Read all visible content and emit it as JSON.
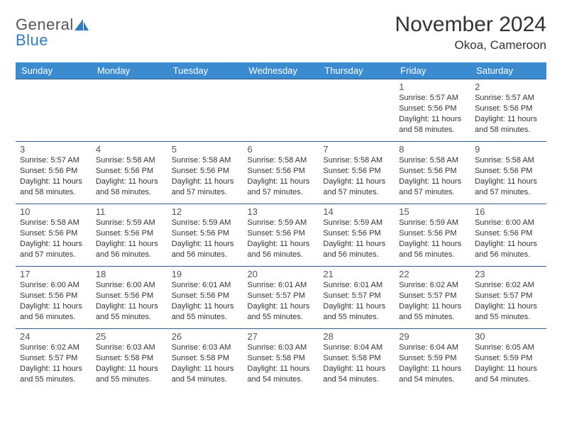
{
  "logo": {
    "word1": "General",
    "word2": "Blue",
    "text_color": "#555555",
    "accent_color": "#2f7cc4"
  },
  "title": "November 2024",
  "location": "Okoa, Cameroon",
  "calendar": {
    "type": "table",
    "header_bg": "#3b8bd0",
    "header_text_color": "#ffffff",
    "row_border_color": "#2f5a8a",
    "daynum_color": "#555555",
    "detail_color": "#333333",
    "daynum_fontsize": 13,
    "detail_fontsize": 11,
    "columns": [
      "Sunday",
      "Monday",
      "Tuesday",
      "Wednesday",
      "Thursday",
      "Friday",
      "Saturday"
    ],
    "weeks": [
      [
        null,
        null,
        null,
        null,
        null,
        {
          "n": "1",
          "sunrise": "5:57 AM",
          "sunset": "5:56 PM",
          "daylight": "11 hours and 58 minutes."
        },
        {
          "n": "2",
          "sunrise": "5:57 AM",
          "sunset": "5:56 PM",
          "daylight": "11 hours and 58 minutes."
        }
      ],
      [
        {
          "n": "3",
          "sunrise": "5:57 AM",
          "sunset": "5:56 PM",
          "daylight": "11 hours and 58 minutes."
        },
        {
          "n": "4",
          "sunrise": "5:58 AM",
          "sunset": "5:56 PM",
          "daylight": "11 hours and 58 minutes."
        },
        {
          "n": "5",
          "sunrise": "5:58 AM",
          "sunset": "5:56 PM",
          "daylight": "11 hours and 57 minutes."
        },
        {
          "n": "6",
          "sunrise": "5:58 AM",
          "sunset": "5:56 PM",
          "daylight": "11 hours and 57 minutes."
        },
        {
          "n": "7",
          "sunrise": "5:58 AM",
          "sunset": "5:56 PM",
          "daylight": "11 hours and 57 minutes."
        },
        {
          "n": "8",
          "sunrise": "5:58 AM",
          "sunset": "5:56 PM",
          "daylight": "11 hours and 57 minutes."
        },
        {
          "n": "9",
          "sunrise": "5:58 AM",
          "sunset": "5:56 PM",
          "daylight": "11 hours and 57 minutes."
        }
      ],
      [
        {
          "n": "10",
          "sunrise": "5:58 AM",
          "sunset": "5:56 PM",
          "daylight": "11 hours and 57 minutes."
        },
        {
          "n": "11",
          "sunrise": "5:59 AM",
          "sunset": "5:56 PM",
          "daylight": "11 hours and 56 minutes."
        },
        {
          "n": "12",
          "sunrise": "5:59 AM",
          "sunset": "5:56 PM",
          "daylight": "11 hours and 56 minutes."
        },
        {
          "n": "13",
          "sunrise": "5:59 AM",
          "sunset": "5:56 PM",
          "daylight": "11 hours and 56 minutes."
        },
        {
          "n": "14",
          "sunrise": "5:59 AM",
          "sunset": "5:56 PM",
          "daylight": "11 hours and 56 minutes."
        },
        {
          "n": "15",
          "sunrise": "5:59 AM",
          "sunset": "5:56 PM",
          "daylight": "11 hours and 56 minutes."
        },
        {
          "n": "16",
          "sunrise": "6:00 AM",
          "sunset": "5:56 PM",
          "daylight": "11 hours and 56 minutes."
        }
      ],
      [
        {
          "n": "17",
          "sunrise": "6:00 AM",
          "sunset": "5:56 PM",
          "daylight": "11 hours and 56 minutes."
        },
        {
          "n": "18",
          "sunrise": "6:00 AM",
          "sunset": "5:56 PM",
          "daylight": "11 hours and 55 minutes."
        },
        {
          "n": "19",
          "sunrise": "6:01 AM",
          "sunset": "5:56 PM",
          "daylight": "11 hours and 55 minutes."
        },
        {
          "n": "20",
          "sunrise": "6:01 AM",
          "sunset": "5:57 PM",
          "daylight": "11 hours and 55 minutes."
        },
        {
          "n": "21",
          "sunrise": "6:01 AM",
          "sunset": "5:57 PM",
          "daylight": "11 hours and 55 minutes."
        },
        {
          "n": "22",
          "sunrise": "6:02 AM",
          "sunset": "5:57 PM",
          "daylight": "11 hours and 55 minutes."
        },
        {
          "n": "23",
          "sunrise": "6:02 AM",
          "sunset": "5:57 PM",
          "daylight": "11 hours and 55 minutes."
        }
      ],
      [
        {
          "n": "24",
          "sunrise": "6:02 AM",
          "sunset": "5:57 PM",
          "daylight": "11 hours and 55 minutes."
        },
        {
          "n": "25",
          "sunrise": "6:03 AM",
          "sunset": "5:58 PM",
          "daylight": "11 hours and 55 minutes."
        },
        {
          "n": "26",
          "sunrise": "6:03 AM",
          "sunset": "5:58 PM",
          "daylight": "11 hours and 54 minutes."
        },
        {
          "n": "27",
          "sunrise": "6:03 AM",
          "sunset": "5:58 PM",
          "daylight": "11 hours and 54 minutes."
        },
        {
          "n": "28",
          "sunrise": "6:04 AM",
          "sunset": "5:58 PM",
          "daylight": "11 hours and 54 minutes."
        },
        {
          "n": "29",
          "sunrise": "6:04 AM",
          "sunset": "5:59 PM",
          "daylight": "11 hours and 54 minutes."
        },
        {
          "n": "30",
          "sunrise": "6:05 AM",
          "sunset": "5:59 PM",
          "daylight": "11 hours and 54 minutes."
        }
      ]
    ],
    "labels": {
      "sunrise": "Sunrise:",
      "sunset": "Sunset:",
      "daylight": "Daylight:"
    }
  }
}
